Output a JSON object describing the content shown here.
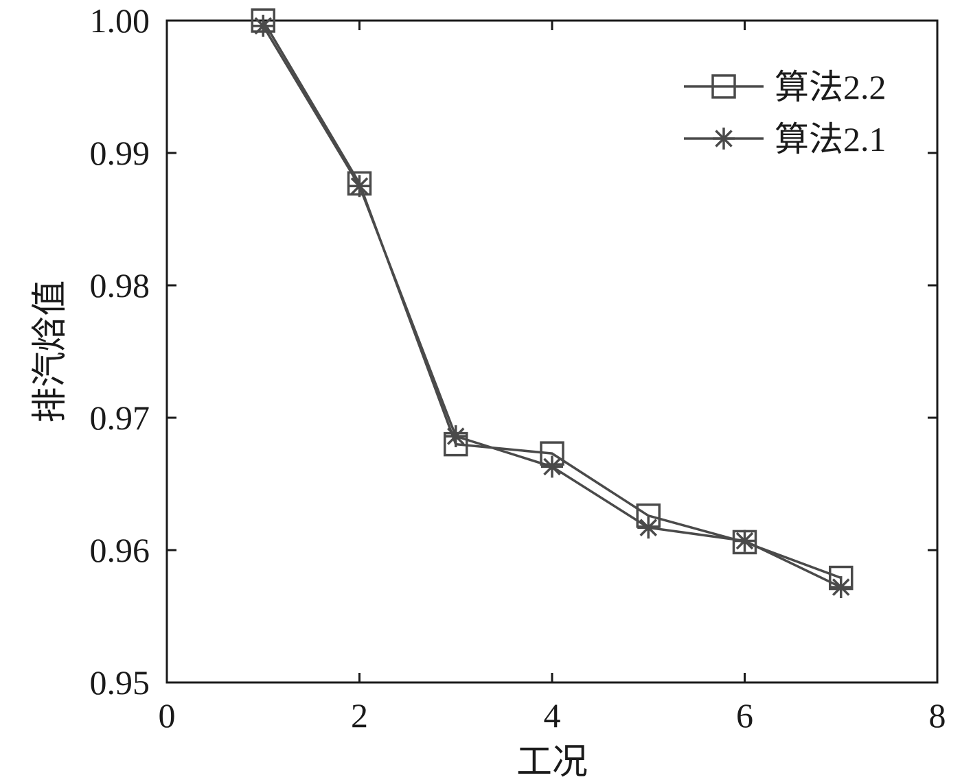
{
  "chart_data": {
    "type": "line",
    "title": "",
    "xlabel": "工况",
    "ylabel": "排汽焓值",
    "xlim": [
      0,
      8
    ],
    "ylim": [
      0.95,
      1.0
    ],
    "xticks": [
      0,
      2,
      4,
      6,
      8
    ],
    "xtick_labels": [
      "0",
      "2",
      "4",
      "6",
      "8"
    ],
    "yticks": [
      0.95,
      0.96,
      0.97,
      0.98,
      0.99,
      1.0
    ],
    "ytick_labels": [
      "0.95",
      "0.96",
      "0.97",
      "0.98",
      "0.99",
      "1.00"
    ],
    "x": [
      1,
      2,
      3,
      4,
      5,
      6,
      7
    ],
    "series": [
      {
        "name": "算法2.2",
        "marker": "square",
        "color": "#4a4a4a",
        "values": [
          1.0,
          0.9877,
          0.968,
          0.9673,
          0.9626,
          0.9606,
          0.9579
        ]
      },
      {
        "name": "算法2.1",
        "marker": "asterisk",
        "color": "#4a4a4a",
        "values": [
          0.9996,
          0.9875,
          0.9686,
          0.9663,
          0.9617,
          0.9607,
          0.9572
        ]
      }
    ],
    "grid": false,
    "legend_position": "top-right"
  }
}
